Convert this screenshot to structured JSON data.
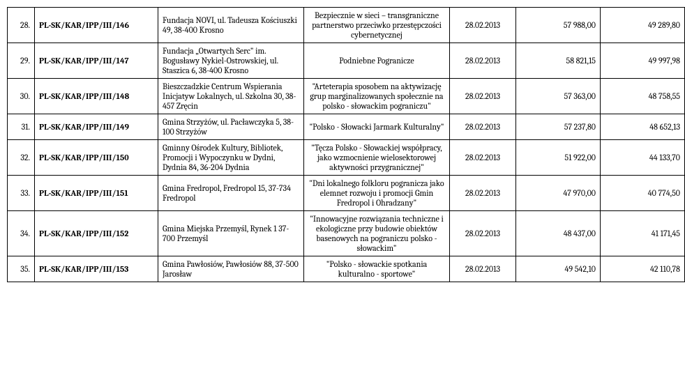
{
  "rows": [
    {
      "num": "28.",
      "id": "PL-SK/KAR/IPP/III/146",
      "org": "Fundacja NOVI, ul. Tadeusza Kościuszki 49, 38-400 Krosno",
      "proj": "Bezpiecznie w sieci – transgraniczne partnerstwo przeciwko przestępczości cybernetycznej",
      "date": "28.02.2013",
      "amt1": "57 988,00",
      "amt2": "49 289,80"
    },
    {
      "num": "29.",
      "id": "PL-SK/KAR/IPP/III/147",
      "org": "Fundacja „Otwartych Serc\" im. Bogusławy Nykiel-Ostrowskiej, ul. Staszica 6, 38-400 Krosno",
      "proj": "Podniebne Pogranicze",
      "date": "28.02.2013",
      "amt1": "58 821,15",
      "amt2": "49 997,98"
    },
    {
      "num": "30.",
      "id": "PL-SK/KAR/IPP/III/148",
      "org": "Bieszczadzkie Centrum Wspierania Inicjatyw Lokalnych, ul. Szkolna 30, 38-457 Zręcin",
      "proj": "\"Arteterapia sposobem na aktywizację grup marginalizowanych społecznie na polsko - słowackim pograniczu\"",
      "date": "28.02.2013",
      "amt1": "57 363,00",
      "amt2": "48 758,55"
    },
    {
      "num": "31.",
      "id": "PL-SK/KAR/IPP/III/149",
      "org": "Gmina Strzyżów, ul. Pacławczyka 5, 38-100 Strzyżów",
      "proj": "\"Polsko - Słowacki Jarmark Kulturalny\"",
      "date": "28.02.2013",
      "amt1": "57 237,80",
      "amt2": "48 652,13"
    },
    {
      "num": "32.",
      "id": "PL-SK/KAR/IPP/III/150",
      "org": "Gminny Ośrodek Kultury, Bibliotek, Promocji i Wypoczynku w Dydni, Dydnia 84, 36-204 Dydnia",
      "proj": "\"Tęcza Polsko - Słowackiej współpracy, jako wzmocnienie wielosektorowej aktywności przygranicznej\"",
      "date": "28.02.2013",
      "amt1": "51 922,00",
      "amt2": "44 133,70"
    },
    {
      "num": "33.",
      "id": "PL-SK/KAR/IPP/III/151",
      "org": "Gmina Fredropol, Fredropol 15, 37-734 Fredropol",
      "proj": "\"Dni lokalnego folkloru pogranicza jako elemnet rozwoju i promocji Gmin Fredropol i Ohradzany\"",
      "date": "28.02.2013",
      "amt1": "47 970,00",
      "amt2": "40 774,50"
    },
    {
      "num": "34.",
      "id": "PL-SK/KAR/IPP/III/152",
      "org": "Gmina Miejska Przemyśl, Rynek 1 37-700 Przemyśl",
      "proj": "\"Innowacyjne rozwiązania techniczne i ekologiczne przy budowie obiektów basenowych na pograniczu polsko - słowackim\"",
      "date": "28.02.2013",
      "amt1": "48 437,00",
      "amt2": "41 171,45"
    },
    {
      "num": "35.",
      "id": "PL-SK/KAR/IPP/III/153",
      "org": "Gmina Pawłosiów, Pawłosiów 88, 37-500 Jarosław",
      "proj": "\"Polsko - słowackie spotkania kulturalno - sportowe\"",
      "date": "28.02.2013",
      "amt1": "49 542,10",
      "amt2": "42 110,78"
    }
  ]
}
